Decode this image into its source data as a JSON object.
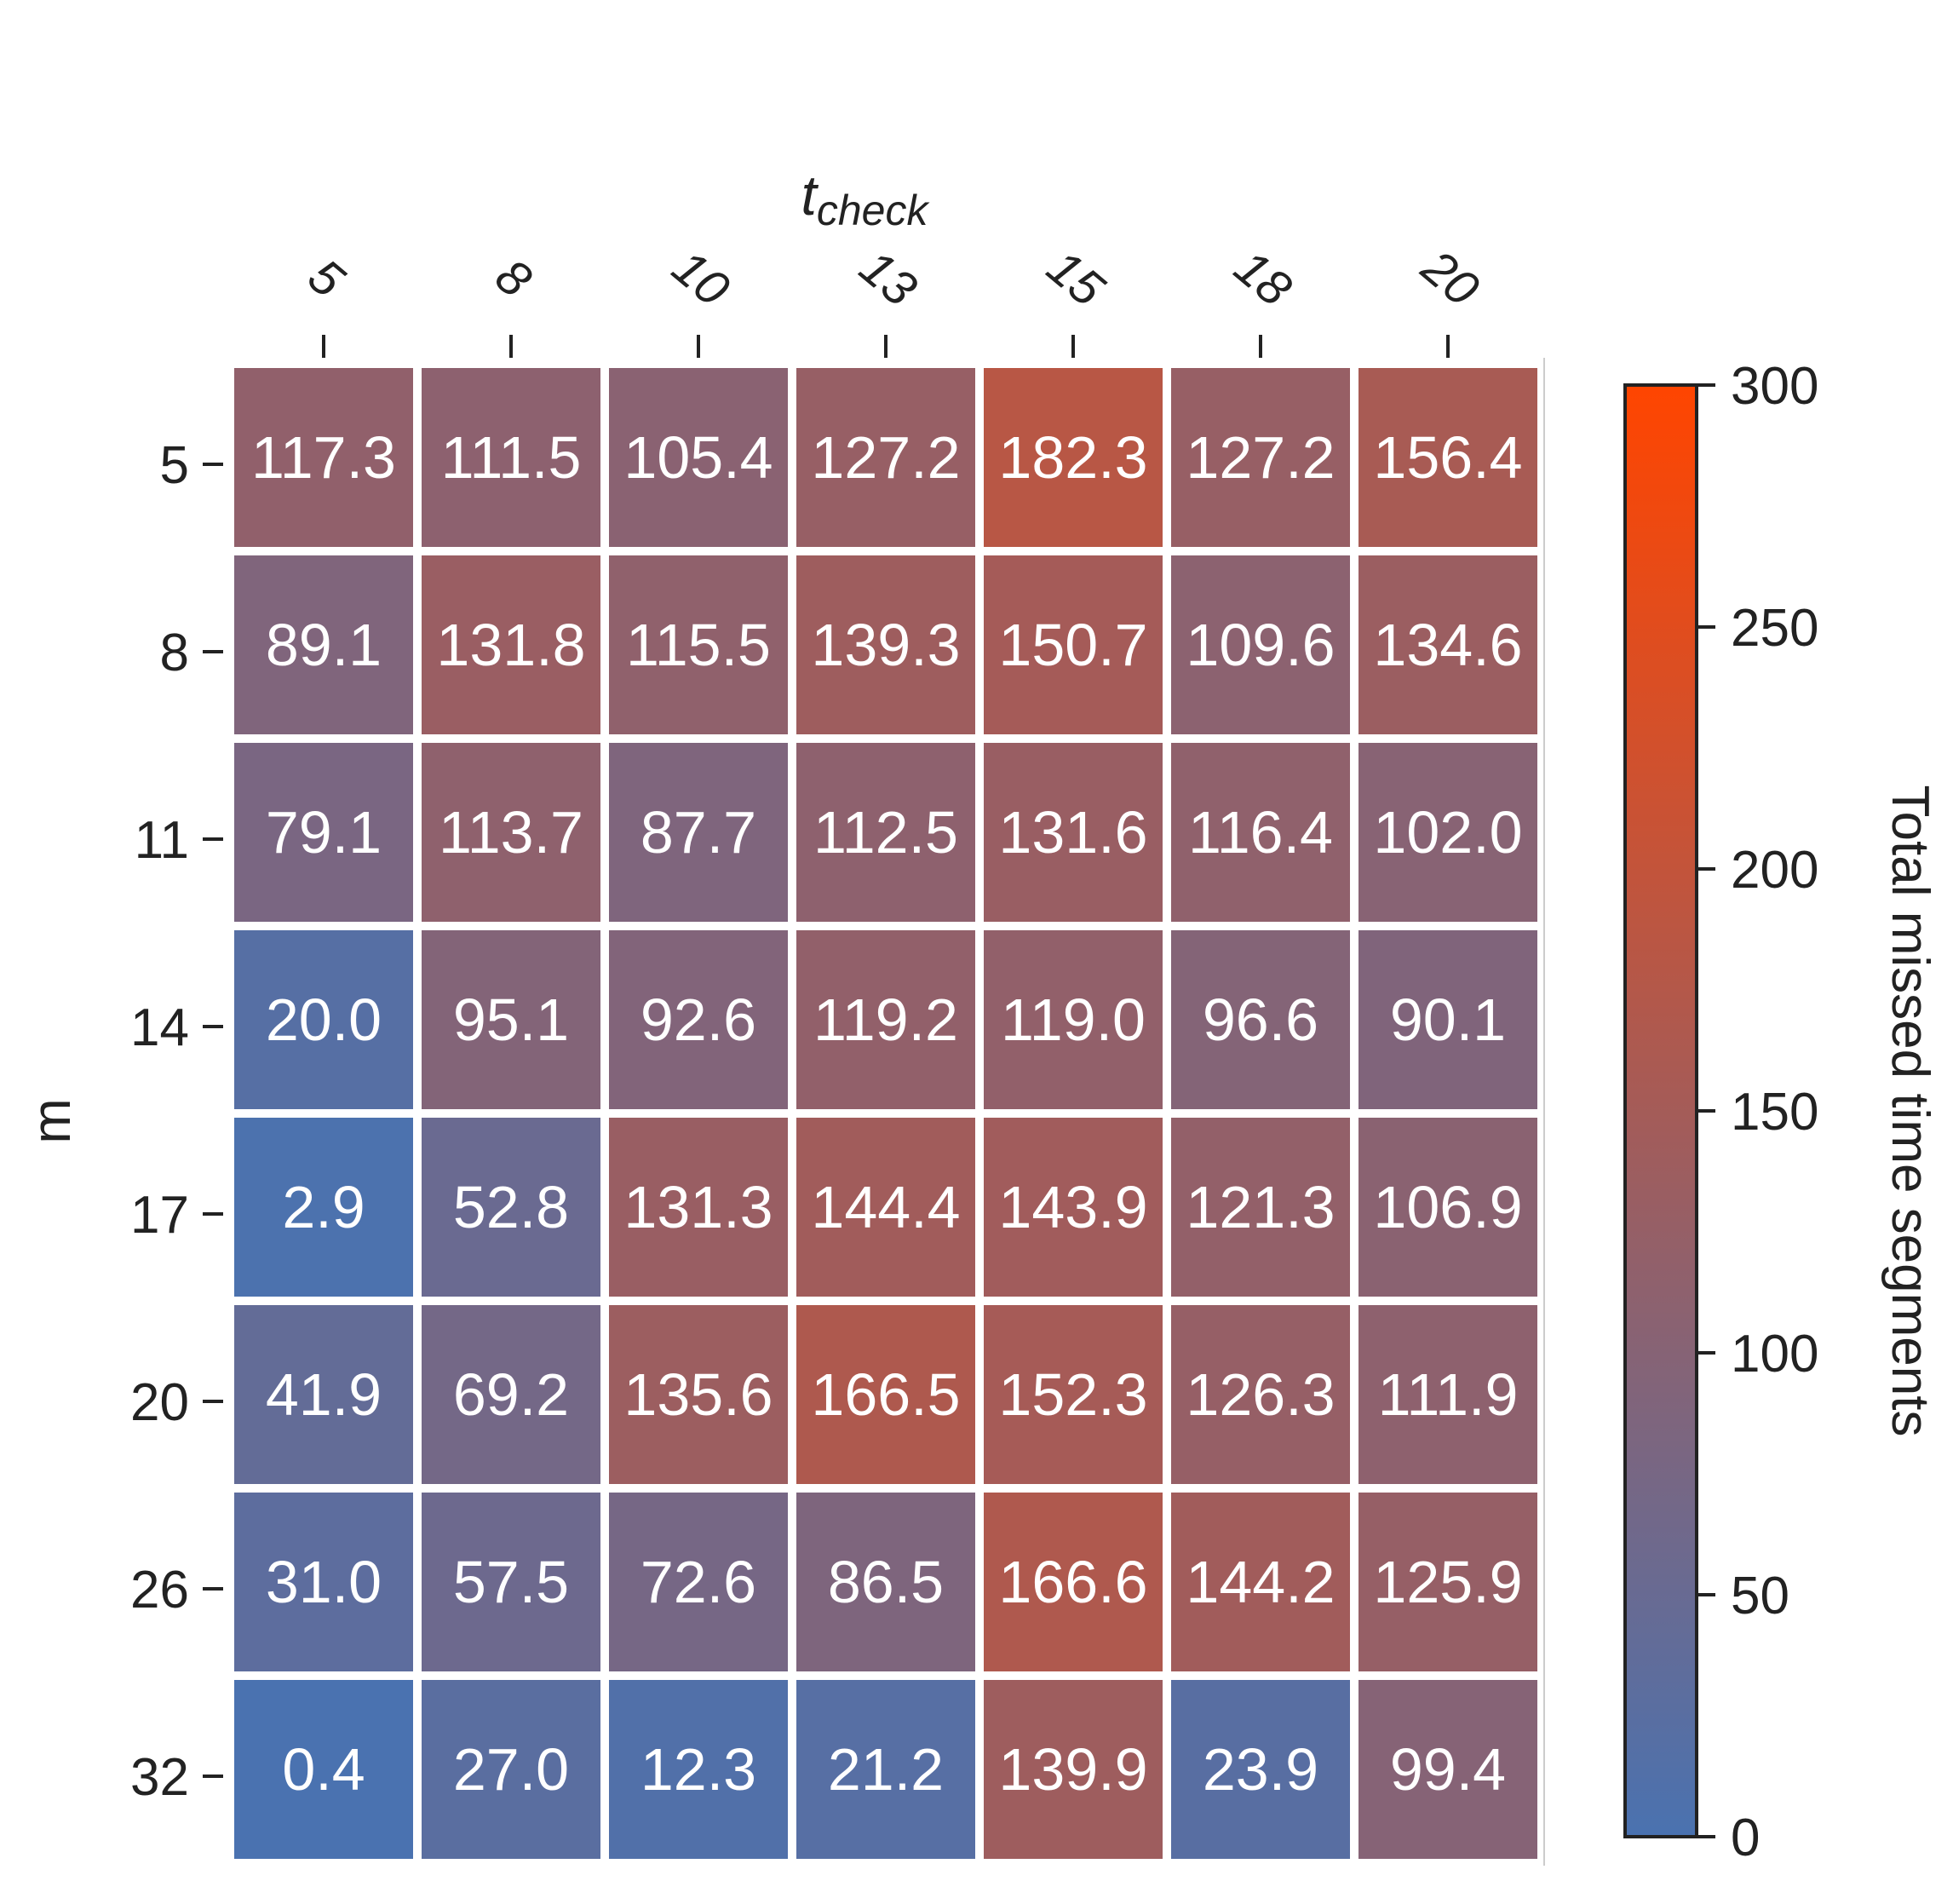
{
  "chart_data": {
    "type": "heatmap",
    "title": "",
    "xlabel": "t",
    "xlabel_subscript": "check",
    "ylabel": "m",
    "x_categories": [
      "5",
      "8",
      "10",
      "13",
      "15",
      "18",
      "20"
    ],
    "y_categories": [
      "5",
      "8",
      "11",
      "14",
      "17",
      "20",
      "26",
      "32"
    ],
    "values": [
      [
        117.3,
        111.5,
        105.4,
        127.2,
        182.3,
        127.2,
        156.4
      ],
      [
        89.1,
        131.8,
        115.5,
        139.3,
        150.7,
        109.6,
        134.6
      ],
      [
        79.1,
        113.7,
        87.7,
        112.5,
        131.6,
        116.4,
        102.0
      ],
      [
        20.0,
        95.1,
        92.6,
        119.2,
        119.0,
        96.6,
        90.1
      ],
      [
        2.9,
        52.8,
        131.3,
        144.4,
        143.9,
        121.3,
        106.9
      ],
      [
        41.9,
        69.2,
        135.6,
        166.5,
        152.3,
        126.3,
        111.9
      ],
      [
        31.0,
        57.5,
        72.6,
        86.5,
        166.6,
        144.2,
        125.9
      ],
      [
        0.4,
        27.0,
        12.3,
        21.2,
        139.9,
        23.9,
        99.4
      ]
    ],
    "value_format": "one decimal",
    "x_axis_position": "top",
    "colorbar": {
      "label": "Total missed time segments",
      "range": [
        0,
        300
      ],
      "ticks": [
        "0",
        "50",
        "100",
        "150",
        "200",
        "250",
        "300"
      ],
      "color_low": "#4a72b0",
      "color_high": "#ff4500"
    },
    "grid": false
  }
}
